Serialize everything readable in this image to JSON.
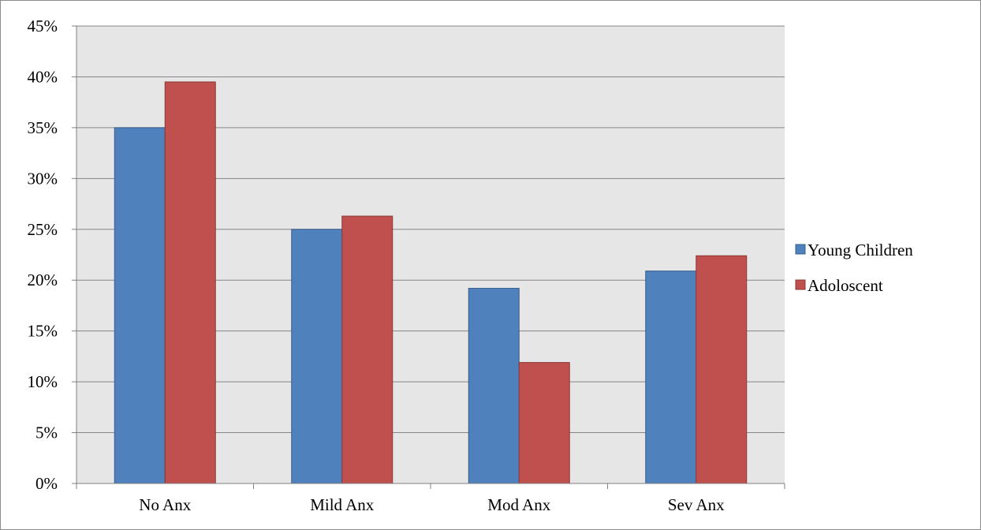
{
  "chart_data": {
    "type": "bar",
    "title": "",
    "xlabel": "",
    "ylabel": "",
    "categories": [
      "No Anx",
      "Mild Anx",
      "Mod Anx",
      "Sev Anx"
    ],
    "series": [
      {
        "name": "Young Children",
        "values": [
          35.0,
          25.0,
          19.2,
          20.9
        ],
        "color": "#4f81bd"
      },
      {
        "name": "Adoloscent",
        "values": [
          39.5,
          26.3,
          11.9,
          22.4
        ],
        "color": "#c0504d"
      }
    ],
    "ylim": [
      0,
      45
    ],
    "yticks": [
      "0%",
      "5%",
      "10%",
      "15%",
      "20%",
      "25%",
      "30%",
      "35%",
      "40%",
      "45%"
    ],
    "grid": true,
    "plot_background": "#e6e6e6",
    "legend": "right"
  }
}
